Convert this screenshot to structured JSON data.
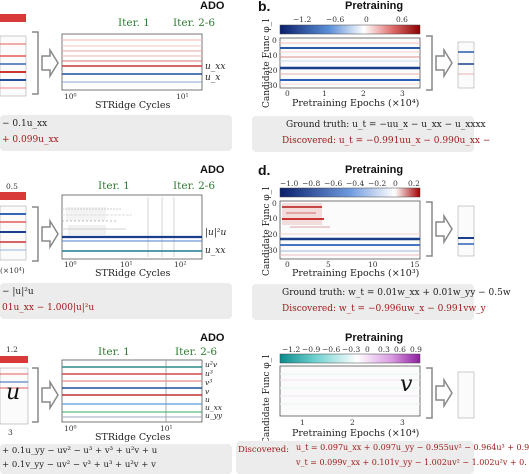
{
  "panels": {
    "a": {
      "title": "ADO",
      "iter1": "Iter. 1",
      "iter26": "Iter. 2-6",
      "series_labels": [
        "u_xx",
        "u_x"
      ],
      "xlabel": "STRidge Cycles",
      "ticks": [
        "10⁰",
        "10¹"
      ],
      "eq1": "− 0.1u_xx",
      "eq2": "+ 0.099u_xx"
    },
    "b": {
      "letter": "b.",
      "title": "Pretraining",
      "colorbar_ticks": [
        "−1.2",
        "−0.6",
        "0",
        "0.6"
      ],
      "ylabel": "Candidate Func φ_l",
      "yticks": [
        "0",
        "10",
        "20",
        "30"
      ],
      "xticks": [
        "0",
        "1",
        "2",
        "3"
      ],
      "xlabel": "Pretraining Epochs (×10⁴)",
      "ground_truth": "Ground truth: u_t = −uu_x − u_xx − u_xxxx",
      "discovered": "Discovered: u_t = −0.991uu_x − 0.990u_xx −"
    },
    "c": {
      "title": "ADO",
      "colorbar_tick": "0.5",
      "iter1": "Iter. 1",
      "iter26": "Iter. 2-6",
      "series_labels": [
        "|u|²u",
        "u_xx"
      ],
      "xlabel": "STRidge Cycles",
      "ticks": [
        "10⁰",
        "10¹",
        "10²"
      ],
      "left_xlabel": "(×10⁴)",
      "eq1": "− |u|²u",
      "eq2": "01u_xx − 1.000|u|²u"
    },
    "d": {
      "letter": "d.",
      "title": "Pretraining",
      "colorbar_ticks": [
        "−1.0",
        "−0.8",
        "−0.6",
        "−0.4",
        "−0.2",
        "0",
        "0.2"
      ],
      "ylabel": "Candidate Func φ_l",
      "yticks": [
        "0",
        "10",
        "20",
        "30"
      ],
      "xticks": [
        "0",
        "5",
        "10",
        "15"
      ],
      "xlabel": "Pretraining Epochs (×10³)",
      "ground_truth": "Ground truth: w_t = 0.01w_xx + 0.01w_yy − 0.5w",
      "discovered": "Discovered: w_t = −0.996uw_x − 0.991vw_y"
    },
    "e": {
      "title": "ADO",
      "colorbar_tick": "1.2",
      "iter1": "Iter. 1",
      "iter26": "Iter. 2-6",
      "big_var": "u",
      "series_labels": [
        "u²v",
        "u³",
        "v³",
        "v",
        "u",
        "u_xx",
        "u_yy"
      ],
      "xlabel": "STRidge Cycles",
      "ticks": [
        "10⁰",
        "10¹"
      ],
      "left_tick": "3",
      "eq1": "+ 0.1u_yy − uv² − u³ + v³ + u²v + u",
      "eq2": "+ 0.1v_yy − uv² − v³ + u³ + u²v + v"
    },
    "f": {
      "title": "Pretraining",
      "colorbar_ticks": [
        "−1.2",
        "−0.9",
        "−0.6",
        "−0.3",
        "0",
        "0.3",
        "0.6",
        "0.9"
      ],
      "ylabel": "Candidate Func φ_l",
      "big_var": "v",
      "xticks": [
        "1",
        "2",
        "3"
      ],
      "xlabel": "Pretraining Epochs (×10⁴)",
      "discovered_label": "Discovered:",
      "disc1": "u_t = 0.097u_xx + 0.097u_yy − 0.955uv² − 0.964u³ + 0.9",
      "disc2": "v_t = 0.099v_xx + 0.101v_yy − 1.002uv² − 1.002u²v + 0."
    }
  },
  "colors": {
    "red": "#c0392b",
    "blue": "#1f4e9c",
    "accent_green": "#2e7d32",
    "discovered_red": "#a11b1b",
    "box_gray": "#ececec"
  }
}
